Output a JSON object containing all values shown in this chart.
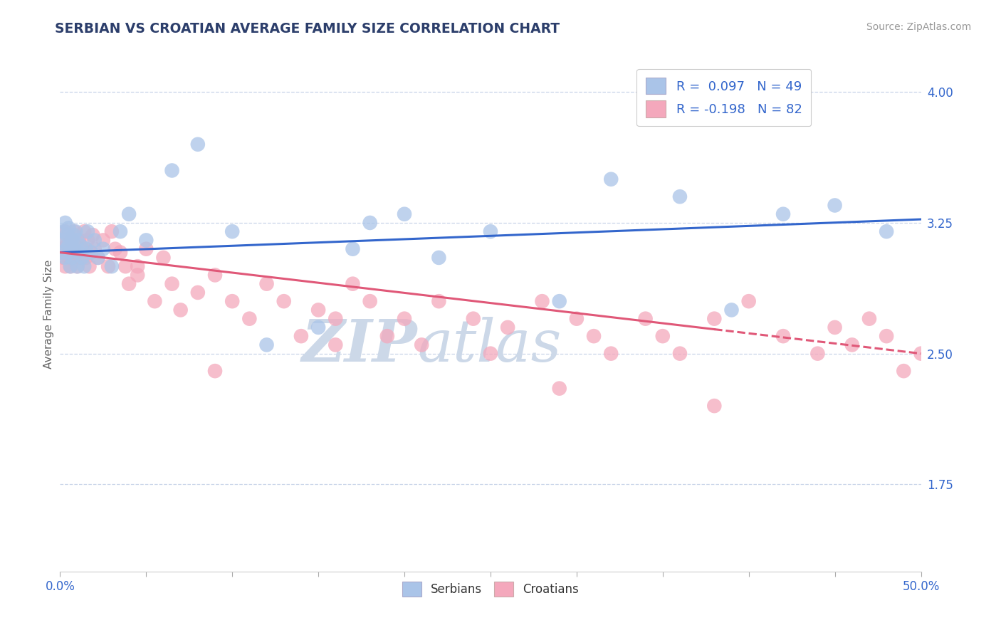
{
  "title": "SERBIAN VS CROATIAN AVERAGE FAMILY SIZE CORRELATION CHART",
  "source": "Source: ZipAtlas.com",
  "ylabel": "Average Family Size",
  "xlim": [
    0.0,
    0.5
  ],
  "ylim": [
    1.25,
    4.2
  ],
  "yticks": [
    1.75,
    2.5,
    3.25,
    4.0
  ],
  "xticks": [
    0.0,
    0.5
  ],
  "xticklabels": [
    "0.0%",
    "50.0%"
  ],
  "serbian_R": 0.097,
  "serbian_N": 49,
  "croatian_R": -0.198,
  "croatian_N": 82,
  "serbian_color": "#aac4e8",
  "croatian_color": "#f4a8bc",
  "trend_serbian_color": "#3366cc",
  "trend_croatian_color": "#e05878",
  "legend_text_color": "#3366cc",
  "title_color": "#2c3e6b",
  "axis_label_color": "#3366cc",
  "tick_color": "#3366cc",
  "grid_color": "#c8d4e8",
  "watermark_color": "#ccd8e8",
  "background_color": "#ffffff",
  "trend_serbian_x0": 0.0,
  "trend_serbian_y0": 3.08,
  "trend_serbian_x1": 0.5,
  "trend_serbian_y1": 3.27,
  "trend_croatian_x0": 0.0,
  "trend_croatian_y0": 3.08,
  "trend_croatian_x1": 0.5,
  "trend_croatian_y1": 2.5,
  "trend_croatian_solid_end": 0.38,
  "serbian_x": [
    0.001,
    0.002,
    0.002,
    0.003,
    0.003,
    0.004,
    0.004,
    0.005,
    0.005,
    0.006,
    0.006,
    0.007,
    0.007,
    0.008,
    0.008,
    0.009,
    0.01,
    0.01,
    0.011,
    0.012,
    0.013,
    0.014,
    0.015,
    0.016,
    0.018,
    0.02,
    0.022,
    0.025,
    0.03,
    0.035,
    0.04,
    0.05,
    0.065,
    0.08,
    0.1,
    0.12,
    0.15,
    0.17,
    0.18,
    0.2,
    0.22,
    0.25,
    0.29,
    0.32,
    0.36,
    0.42,
    0.45,
    0.39,
    0.48
  ],
  "serbian_y": [
    3.08,
    3.15,
    3.2,
    3.05,
    3.25,
    3.1,
    3.18,
    3.12,
    3.22,
    3.08,
    3.0,
    3.15,
    3.05,
    3.18,
    3.1,
    3.2,
    3.0,
    3.15,
    3.08,
    3.12,
    3.05,
    3.0,
    3.1,
    3.2,
    3.08,
    3.15,
    3.05,
    3.1,
    3.0,
    3.2,
    3.3,
    3.15,
    3.55,
    3.7,
    3.2,
    2.55,
    2.65,
    3.1,
    3.25,
    3.3,
    3.05,
    3.2,
    2.8,
    3.5,
    3.4,
    3.3,
    3.35,
    2.75,
    3.2
  ],
  "croatian_x": [
    0.001,
    0.002,
    0.002,
    0.003,
    0.003,
    0.004,
    0.004,
    0.005,
    0.005,
    0.006,
    0.006,
    0.007,
    0.007,
    0.008,
    0.008,
    0.009,
    0.01,
    0.01,
    0.011,
    0.012,
    0.013,
    0.014,
    0.015,
    0.016,
    0.017,
    0.018,
    0.019,
    0.02,
    0.022,
    0.025,
    0.028,
    0.03,
    0.032,
    0.035,
    0.038,
    0.04,
    0.045,
    0.05,
    0.055,
    0.06,
    0.065,
    0.07,
    0.08,
    0.09,
    0.1,
    0.11,
    0.12,
    0.13,
    0.14,
    0.15,
    0.16,
    0.17,
    0.18,
    0.19,
    0.2,
    0.21,
    0.22,
    0.24,
    0.26,
    0.28,
    0.3,
    0.31,
    0.32,
    0.34,
    0.35,
    0.36,
    0.38,
    0.4,
    0.42,
    0.44,
    0.45,
    0.46,
    0.47,
    0.48,
    0.49,
    0.5,
    0.25,
    0.16,
    0.09,
    0.045,
    0.38,
    0.29
  ],
  "croatian_y": [
    3.1,
    3.15,
    3.05,
    3.2,
    3.0,
    3.12,
    3.08,
    3.18,
    3.05,
    3.1,
    3.0,
    3.08,
    3.15,
    3.05,
    3.2,
    3.12,
    3.0,
    3.08,
    3.15,
    3.05,
    3.1,
    3.2,
    3.05,
    3.15,
    3.0,
    3.08,
    3.18,
    3.1,
    3.05,
    3.15,
    3.0,
    3.2,
    3.1,
    3.08,
    3.0,
    2.9,
    3.0,
    3.1,
    2.8,
    3.05,
    2.9,
    2.75,
    2.85,
    2.95,
    2.8,
    2.7,
    2.9,
    2.8,
    2.6,
    2.75,
    2.7,
    2.9,
    2.8,
    2.6,
    2.7,
    2.55,
    2.8,
    2.7,
    2.65,
    2.8,
    2.7,
    2.6,
    2.5,
    2.7,
    2.6,
    2.5,
    2.7,
    2.8,
    2.6,
    2.5,
    2.65,
    2.55,
    2.7,
    2.6,
    2.4,
    2.5,
    2.5,
    2.55,
    2.4,
    2.95,
    2.2,
    2.3
  ]
}
